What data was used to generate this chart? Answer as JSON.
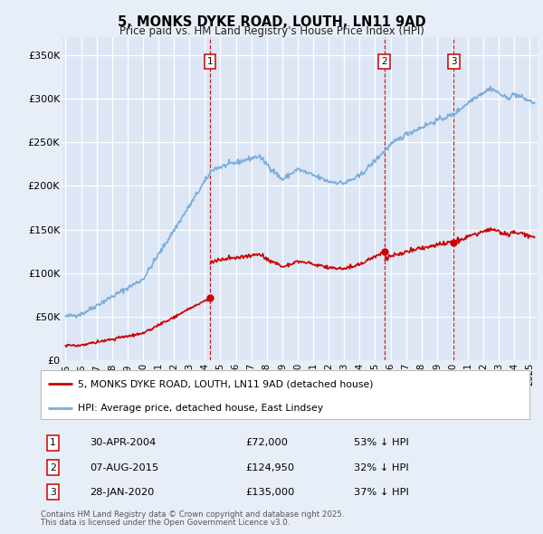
{
  "title": "5, MONKS DYKE ROAD, LOUTH, LN11 9AD",
  "subtitle": "Price paid vs. HM Land Registry's House Price Index (HPI)",
  "legend_line1": "5, MONKS DYKE ROAD, LOUTH, LN11 9AD (detached house)",
  "legend_line2": "HPI: Average price, detached house, East Lindsey",
  "ylabel_ticks": [
    "£0",
    "£50K",
    "£100K",
    "£150K",
    "£200K",
    "£250K",
    "£300K",
    "£350K"
  ],
  "ytick_values": [
    0,
    50000,
    100000,
    150000,
    200000,
    250000,
    300000,
    350000
  ],
  "ylim": [
    0,
    370000
  ],
  "xlim_start": 1994.8,
  "xlim_end": 2025.5,
  "bg_color": "#e8eef7",
  "plot_bg_color": "#dce6f5",
  "line_color_red": "#cc0000",
  "line_color_blue": "#7aaddb",
  "vline_color": "#cc0000",
  "transactions": [
    {
      "label": "1",
      "date_num": 2004.33,
      "price": 72000,
      "text": "30-APR-2004",
      "amount": "£72,000",
      "pct": "53% ↓ HPI"
    },
    {
      "label": "2",
      "date_num": 2015.6,
      "price": 124950,
      "text": "07-AUG-2015",
      "amount": "£124,950",
      "pct": "32% ↓ HPI"
    },
    {
      "label": "3",
      "date_num": 2020.08,
      "price": 135000,
      "text": "28-JAN-2020",
      "amount": "£135,000",
      "pct": "37% ↓ HPI"
    }
  ],
  "footer_line1": "Contains HM Land Registry data © Crown copyright and database right 2025.",
  "footer_line2": "This data is licensed under the Open Government Licence v3.0.",
  "xtick_years": [
    1995,
    1996,
    1997,
    1998,
    1999,
    2000,
    2001,
    2002,
    2003,
    2004,
    2005,
    2006,
    2007,
    2008,
    2009,
    2010,
    2011,
    2012,
    2013,
    2014,
    2015,
    2016,
    2017,
    2018,
    2019,
    2020,
    2021,
    2022,
    2023,
    2024,
    2025
  ]
}
